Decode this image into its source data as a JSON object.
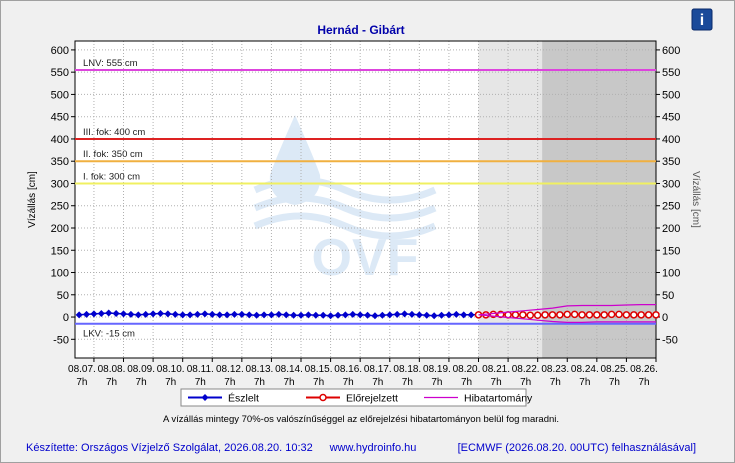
{
  "chart_data": {
    "type": "line",
    "title": "Hernád - Gibárt",
    "ylabel": "Vízállás [cm]",
    "y2label": "Vízállás [cm]",
    "watermark": "OVF",
    "note": "A vízállás mintegy 70%-os valószínűséggel az előrejelzési hibatartományon belül fog maradni.",
    "footer": [
      "Készítette: Országos Vízjelző Szolgálat, 2026.08.20. 10:32",
      "www.hydroinfo.hu",
      "[ECMWF (2026.08.20. 00UTC) felhasználásával]"
    ],
    "xlim": [
      6.36,
      26
    ],
    "xticks": [
      {
        "value": 7,
        "label": "08.07.",
        "hour": "7h"
      },
      {
        "value": 8,
        "label": "08.08.",
        "hour": "7h"
      },
      {
        "value": 9,
        "label": "08.09.",
        "hour": "7h"
      },
      {
        "value": 10,
        "label": "08.10.",
        "hour": "7h"
      },
      {
        "value": 11,
        "label": "08.11.",
        "hour": "7h"
      },
      {
        "value": 12,
        "label": "08.12.",
        "hour": "7h"
      },
      {
        "value": 13,
        "label": "08.13.",
        "hour": "7h"
      },
      {
        "value": 14,
        "label": "08.14.",
        "hour": "7h"
      },
      {
        "value": 15,
        "label": "08.15.",
        "hour": "7h"
      },
      {
        "value": 16,
        "label": "08.16.",
        "hour": "7h"
      },
      {
        "value": 17,
        "label": "08.17.",
        "hour": "7h"
      },
      {
        "value": 18,
        "label": "08.18.",
        "hour": "7h"
      },
      {
        "value": 19,
        "label": "08.19.",
        "hour": "7h"
      },
      {
        "value": 20,
        "label": "08.20.",
        "hour": "7h"
      },
      {
        "value": 21,
        "label": "08.21.",
        "hour": "7h"
      },
      {
        "value": 22,
        "label": "08.22.",
        "hour": "7h"
      },
      {
        "value": 23,
        "label": "08.23.",
        "hour": "7h"
      },
      {
        "value": 24,
        "label": "08.24.",
        "hour": "7h"
      },
      {
        "value": 25,
        "label": "08.25.",
        "hour": "7h"
      },
      {
        "value": 26,
        "label": "08.26.",
        "hour": "7h"
      }
    ],
    "ylim": [
      -92,
      620
    ],
    "yticks": [
      -50,
      0,
      50,
      100,
      150,
      200,
      250,
      300,
      350,
      400,
      450,
      500,
      550,
      600
    ],
    "y2lim": [
      -92,
      620
    ],
    "y2ticks": [
      -50,
      0,
      50,
      100,
      150,
      200,
      250,
      300,
      350,
      400,
      450,
      500,
      550,
      600
    ],
    "grid": true,
    "shading": [
      {
        "from": 20,
        "to": 22.15,
        "color": "#e6e6e6"
      },
      {
        "from": 22.15,
        "to": 26,
        "color": "#c8c8c8"
      }
    ],
    "levels": [
      {
        "label": "LNV: 555 cm",
        "value": 555,
        "color": "#dd44dd"
      },
      {
        "label": "III. fok: 400 cm",
        "value": 400,
        "color": "#dd2222"
      },
      {
        "label": "II. fok: 350 cm",
        "value": 350,
        "color": "#f0b040"
      },
      {
        "label": "I. fok: 300 cm",
        "value": 300,
        "color": "#f0f060"
      },
      {
        "label": "LKV: -15 cm",
        "value": -15,
        "color": "#6666ff"
      }
    ],
    "series": [
      {
        "name": "Észlelt",
        "color": "#0000cc",
        "marker": "diamond",
        "x": [
          6.5,
          6.75,
          7,
          7.25,
          7.5,
          7.75,
          8,
          8.25,
          8.5,
          8.75,
          9,
          9.25,
          9.5,
          9.75,
          10,
          10.25,
          10.5,
          10.75,
          11,
          11.25,
          11.5,
          11.75,
          12,
          12.25,
          12.5,
          12.75,
          13,
          13.25,
          13.5,
          13.75,
          14,
          14.25,
          14.5,
          14.75,
          15,
          15.25,
          15.5,
          15.75,
          16,
          16.25,
          16.5,
          16.75,
          17,
          17.25,
          17.5,
          17.75,
          18,
          18.25,
          18.5,
          18.75,
          19,
          19.25,
          19.5,
          19.75,
          20
        ],
        "values": [
          5,
          6,
          7,
          8,
          9,
          8,
          7,
          6,
          5,
          6,
          7,
          8,
          7,
          6,
          5,
          5,
          6,
          7,
          6,
          5,
          5,
          6,
          6,
          5,
          4,
          5,
          5,
          6,
          5,
          4,
          4,
          5,
          4,
          4,
          3,
          4,
          5,
          6,
          5,
          4,
          3,
          4,
          5,
          6,
          7,
          6,
          5,
          4,
          3,
          4,
          5,
          6,
          5,
          5,
          5
        ]
      },
      {
        "name": "Előrejelzett",
        "color": "#dd0000",
        "marker": "circle",
        "x": [
          20,
          20.25,
          20.5,
          20.75,
          21,
          21.25,
          21.5,
          21.75,
          22,
          22.25,
          22.5,
          22.75,
          23,
          23.25,
          23.5,
          23.75,
          24,
          24.25,
          24.5,
          24.75,
          25,
          25.25,
          25.5,
          25.75,
          26
        ],
        "values": [
          5,
          5,
          6,
          6,
          5,
          5,
          5,
          4,
          4,
          5,
          5,
          5,
          6,
          6,
          5,
          5,
          5,
          5,
          6,
          6,
          5,
          5,
          5,
          5,
          5
        ]
      },
      {
        "name": "Hibatartomány",
        "color": "#cc00cc",
        "marker": "none",
        "x": [
          20,
          20.5,
          21,
          21.5,
          22,
          22.5,
          23,
          23.5,
          24,
          24.5,
          25,
          25.5,
          26
        ],
        "upper": [
          5,
          8,
          11,
          14,
          17,
          20,
          25,
          26,
          26,
          26,
          27,
          28,
          28
        ],
        "lower": [
          5,
          2,
          -1,
          -4,
          -7,
          -10,
          -12,
          -12,
          -11,
          -11,
          -11,
          -11,
          -11
        ]
      }
    ]
  }
}
